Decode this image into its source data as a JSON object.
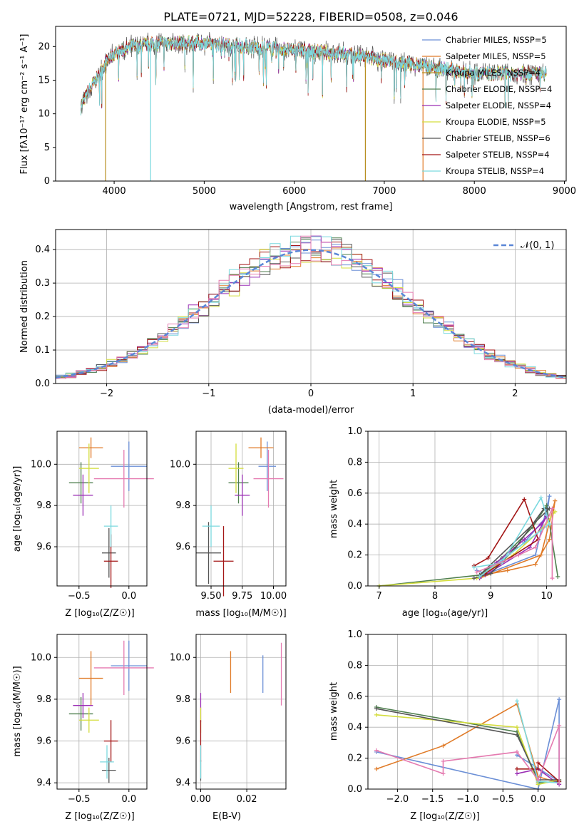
{
  "colors": [
    "#6b8fd6",
    "#e07b28",
    "#b88e1e",
    "#4f7f4f",
    "#9b2fb5",
    "#d4dd3c",
    "#555555",
    "#a31616",
    "#7bd9df"
  ],
  "spectrum": {
    "title": "PLATE=0721, MJD=52228, FIBERID=0508, z=0.046",
    "xlabel": "wavelength [Angstrom, rest frame]",
    "ylabel": "Flux [fλ10⁻¹⁷ erg cm⁻² s⁻¹ A⁻¹]",
    "xticks": [
      "4000",
      "5000",
      "6000",
      "7000",
      "8000",
      "9000"
    ],
    "yticks": [
      "0",
      "5",
      "10",
      "15",
      "20"
    ],
    "legend": [
      "Chabrier MILES, NSSP=5",
      "Salpeter MILES, NSSP=5",
      "Kroupa MILES, NSSP=4",
      "Chabrier ELODIE, NSSP=4",
      "Salpeter ELODIE, NSSP=4",
      "Kroupa ELODIE, NSSP=5",
      "Chabrier STELIB, NSSP=6",
      "Salpeter STELIB, NSSP=4",
      "Kroupa STELIB, NSSP=4"
    ]
  },
  "residuals": {
    "xlabel": "(data-model)/error",
    "ylabel": "Normed distribution",
    "xticks": [
      "−2",
      "−1",
      "0",
      "1",
      "2"
    ],
    "yticks": [
      "0.0",
      "0.1",
      "0.2",
      "0.3",
      "0.4"
    ],
    "legend": "𝒩(0, 1)"
  },
  "panels": {
    "age_z": {
      "xlabel": "Z [log₁₀(Z/Z☉)]",
      "ylabel": "age  [log₁₀(age/yr)]",
      "xticks": [
        "−0.5",
        "0.0"
      ],
      "yticks": [
        "9.6",
        "9.8",
        "10.0"
      ]
    },
    "age_mass": {
      "xlabel": "mass [log₁₀(M/M☉)]",
      "xticks": [
        "9.50",
        "9.75",
        "10.00"
      ],
      "yticks": [
        "9.6",
        "9.8",
        "10.0"
      ]
    },
    "mw_age": {
      "xlabel": "age  [log₁₀(age/yr)]",
      "ylabel": "mass weight",
      "xticks": [
        "7",
        "8",
        "9",
        "10"
      ],
      "yticks": [
        "0.0",
        "0.2",
        "0.4",
        "0.6",
        "0.8",
        "1.0"
      ]
    },
    "mass_z": {
      "xlabel": "Z [log₁₀(Z/Z☉)]",
      "ylabel": "mass [log₁₀(M/M☉)]",
      "xticks": [
        "−0.5",
        "0.0"
      ],
      "yticks": [
        "9.4",
        "9.6",
        "9.8",
        "10.0"
      ]
    },
    "mass_ebv": {
      "xlabel": "E(B-V)",
      "xticks": [
        "0.00",
        "0.02"
      ],
      "yticks": [
        "9.4",
        "9.6",
        "9.8",
        "10.0"
      ]
    },
    "mw_z": {
      "xlabel": "Z [log₁₀(Z/Z☉)]",
      "ylabel": "mass weight",
      "xticks": [
        "−2.0",
        "−1.5",
        "−1.0",
        "−0.5",
        "0.0"
      ],
      "yticks": [
        "0.0",
        "0.2",
        "0.4",
        "0.6",
        "0.8",
        "1.0"
      ]
    }
  },
  "chart_data": [
    {
      "type": "line",
      "title": "PLATE=0721, MJD=52228, FIBERID=0508, z=0.046",
      "xlim": [
        3350,
        9020
      ],
      "ylim": [
        0,
        23
      ],
      "continuum": [
        [
          3630,
          11
        ],
        [
          3700,
          13
        ],
        [
          3800,
          15
        ],
        [
          3900,
          17.5
        ],
        [
          4000,
          19
        ],
        [
          4200,
          20
        ],
        [
          4500,
          20.5
        ],
        [
          5000,
          20.5
        ],
        [
          5500,
          20
        ],
        [
          6000,
          19.5
        ],
        [
          6500,
          19
        ],
        [
          7000,
          18
        ],
        [
          7500,
          17
        ],
        [
          8000,
          16
        ],
        [
          8500,
          16
        ],
        [
          8800,
          16
        ]
      ],
      "drops": [
        {
          "x": 3905,
          "series": 2
        },
        {
          "x": 4405,
          "series": 8
        },
        {
          "x": 6790,
          "series": 2
        },
        {
          "x": 7430,
          "series": 1
        }
      ]
    },
    {
      "type": "bar",
      "xlim": [
        -2.5,
        2.5
      ],
      "ylim": [
        0,
        0.46
      ],
      "bin_width": 0.1,
      "gaussian": {
        "mu": 0,
        "sigma": 1
      }
    },
    {
      "type": "scatter",
      "name": "age_vs_Z",
      "xlim": [
        -0.72,
        0.18
      ],
      "ylim": [
        9.41,
        10.16
      ],
      "points": [
        {
          "x": 0.0,
          "xe": 0.18,
          "y": 9.99,
          "ye": 0.12,
          "s": 0
        },
        {
          "x": -0.38,
          "xe": 0.12,
          "y": 10.08,
          "ye": 0.05,
          "s": 1
        },
        {
          "x": -0.48,
          "xe": 0.12,
          "y": 9.91,
          "ye": 0.1,
          "s": 3
        },
        {
          "x": -0.46,
          "xe": 0.1,
          "y": 9.85,
          "ye": 0.1,
          "s": 4
        },
        {
          "x": -0.4,
          "xe": 0.1,
          "y": 9.98,
          "ye": 0.12,
          "s": 5
        },
        {
          "x": -0.2,
          "xe": 0.07,
          "y": 9.57,
          "ye": 0.12,
          "s": 6
        },
        {
          "x": -0.18,
          "xe": 0.07,
          "y": 9.53,
          "ye": 0.13,
          "s": 7
        },
        {
          "x": -0.18,
          "xe": 0.07,
          "y": 9.7,
          "ye": 0.1,
          "s": 8
        },
        {
          "x": -0.05,
          "xe": 0.3,
          "y": 9.93,
          "ye": 0.14,
          "s": 9
        }
      ]
    },
    {
      "type": "scatter",
      "name": "age_vs_mass",
      "xlim": [
        9.38,
        10.1
      ],
      "ylim": [
        9.41,
        10.16
      ],
      "points": [
        {
          "x": 9.95,
          "xe": 0.07,
          "y": 9.99,
          "ye": 0.12,
          "s": 0
        },
        {
          "x": 9.9,
          "xe": 0.1,
          "y": 10.08,
          "ye": 0.05,
          "s": 1
        },
        {
          "x": 9.72,
          "xe": 0.08,
          "y": 9.91,
          "ye": 0.1,
          "s": 3
        },
        {
          "x": 9.75,
          "xe": 0.06,
          "y": 9.85,
          "ye": 0.1,
          "s": 4
        },
        {
          "x": 9.7,
          "xe": 0.06,
          "y": 9.98,
          "ye": 0.12,
          "s": 5
        },
        {
          "x": 9.48,
          "xe": 0.1,
          "y": 9.57,
          "ye": 0.15,
          "s": 6
        },
        {
          "x": 9.6,
          "xe": 0.08,
          "y": 9.53,
          "ye": 0.17,
          "s": 7
        },
        {
          "x": 9.5,
          "xe": 0.07,
          "y": 9.7,
          "ye": 0.1,
          "s": 8
        },
        {
          "x": 9.96,
          "xe": 0.12,
          "y": 9.93,
          "ye": 0.14,
          "s": 9
        }
      ]
    },
    {
      "type": "line",
      "name": "mass_weight_vs_age",
      "xlim": [
        6.8,
        10.35
      ],
      "ylim": [
        0,
        1
      ],
      "series": [
        {
          "s": 0,
          "points": [
            [
              8.75,
              0.1
            ],
            [
              8.9,
              0.08
            ],
            [
              9.6,
              0.28
            ],
            [
              10.0,
              0.45
            ],
            [
              10.05,
              0.58
            ],
            [
              9.8,
              0.2
            ],
            [
              8.8,
              0.06
            ]
          ]
        },
        {
          "s": 1,
          "points": [
            [
              8.85,
              0.07
            ],
            [
              9.3,
              0.1
            ],
            [
              9.8,
              0.14
            ],
            [
              10.05,
              0.3
            ],
            [
              10.15,
              0.55
            ],
            [
              9.9,
              0.2
            ],
            [
              8.8,
              0.05
            ]
          ]
        },
        {
          "s": 3,
          "points": [
            [
              7.0,
              0.0
            ],
            [
              8.8,
              0.07
            ],
            [
              9.2,
              0.18
            ],
            [
              9.75,
              0.38
            ],
            [
              10.0,
              0.52
            ],
            [
              10.2,
              0.06
            ]
          ]
        },
        {
          "s": 4,
          "points": [
            [
              8.8,
              0.05
            ],
            [
              9.1,
              0.15
            ],
            [
              9.6,
              0.3
            ],
            [
              9.9,
              0.4
            ],
            [
              10.0,
              0.45
            ],
            [
              9.7,
              0.25
            ],
            [
              8.9,
              0.07
            ]
          ]
        },
        {
          "s": 5,
          "points": [
            [
              7.0,
              0.0
            ],
            [
              8.75,
              0.05
            ],
            [
              9.4,
              0.2
            ],
            [
              9.95,
              0.38
            ],
            [
              10.15,
              0.48
            ]
          ]
        },
        {
          "s": 6,
          "points": [
            [
              8.7,
              0.05
            ],
            [
              9.0,
              0.08
            ],
            [
              9.45,
              0.25
            ],
            [
              9.95,
              0.5
            ],
            [
              10.05,
              0.5
            ],
            [
              8.8,
              0.07
            ]
          ]
        },
        {
          "s": 7,
          "points": [
            [
              8.7,
              0.13
            ],
            [
              8.95,
              0.18
            ],
            [
              9.6,
              0.56
            ],
            [
              9.85,
              0.3
            ],
            [
              8.9,
              0.08
            ]
          ]
        },
        {
          "s": 8,
          "points": [
            [
              8.7,
              0.12
            ],
            [
              9.2,
              0.15
            ],
            [
              9.9,
              0.57
            ],
            [
              10.05,
              0.4
            ],
            [
              8.8,
              0.06
            ]
          ]
        },
        {
          "s": 9,
          "points": [
            [
              8.75,
              0.09
            ],
            [
              9.5,
              0.2
            ],
            [
              9.8,
              0.25
            ],
            [
              10.1,
              0.5
            ],
            [
              10.1,
              0.05
            ]
          ]
        }
      ]
    },
    {
      "type": "scatter",
      "name": "mass_vs_Z",
      "xlim": [
        -0.72,
        0.18
      ],
      "ylim": [
        9.37,
        10.11
      ],
      "points": [
        {
          "x": 0.0,
          "xe": 0.18,
          "y": 9.96,
          "ye": 0.12,
          "s": 0
        },
        {
          "x": -0.38,
          "xe": 0.12,
          "y": 9.9,
          "ye": 0.13,
          "s": 1
        },
        {
          "x": -0.48,
          "xe": 0.12,
          "y": 9.73,
          "ye": 0.08,
          "s": 3
        },
        {
          "x": -0.46,
          "xe": 0.1,
          "y": 9.77,
          "ye": 0.06,
          "s": 4
        },
        {
          "x": -0.4,
          "xe": 0.1,
          "y": 9.7,
          "ye": 0.06,
          "s": 5
        },
        {
          "x": -0.2,
          "xe": 0.07,
          "y": 9.46,
          "ye": 0.06,
          "s": 6
        },
        {
          "x": -0.18,
          "xe": 0.07,
          "y": 9.6,
          "ye": 0.1,
          "s": 7
        },
        {
          "x": -0.22,
          "xe": 0.07,
          "y": 9.5,
          "ye": 0.08,
          "s": 8
        },
        {
          "x": -0.05,
          "xe": 0.3,
          "y": 9.95,
          "ye": 0.13,
          "s": 9
        }
      ]
    },
    {
      "type": "scatter",
      "name": "mass_vs_EBV",
      "xlim": [
        -0.002,
        0.037
      ],
      "ylim": [
        9.37,
        10.11
      ],
      "points": [
        {
          "x": 0.027,
          "y": 9.92,
          "ye": 0.09,
          "s": 0
        },
        {
          "x": 0.013,
          "y": 9.93,
          "ye": 0.1,
          "s": 1
        },
        {
          "x": 0.0,
          "y": 9.76,
          "ye": 0.07,
          "s": 4
        },
        {
          "x": 0.0,
          "y": 9.7,
          "ye": 0.06,
          "s": 5
        },
        {
          "x": 0.0,
          "y": 9.46,
          "ye": 0.05,
          "s": 6
        },
        {
          "x": 0.0,
          "y": 9.6,
          "ye": 0.1,
          "s": 7
        },
        {
          "x": 0.0,
          "y": 9.5,
          "ye": 0.08,
          "s": 8
        },
        {
          "x": 0.035,
          "y": 9.92,
          "ye": 0.15,
          "s": 9
        }
      ]
    },
    {
      "type": "line",
      "name": "mass_weight_vs_Z",
      "xlim": [
        -2.42,
        0.4
      ],
      "ylim": [
        0,
        1
      ],
      "series": [
        {
          "s": 0,
          "points": [
            [
              -2.3,
              0.24
            ],
            [
              0.0,
              0.0
            ],
            [
              0.3,
              0.58
            ],
            [
              0.3,
              0.05
            ],
            [
              -0.3,
              0.22
            ]
          ]
        },
        {
          "s": 1,
          "points": [
            [
              -2.3,
              0.13
            ],
            [
              -1.35,
              0.28
            ],
            [
              -0.3,
              0.55
            ],
            [
              0.0,
              0.08
            ],
            [
              0.3,
              0.04
            ]
          ]
        },
        {
          "s": 3,
          "points": [
            [
              -2.3,
              0.53
            ],
            [
              -0.3,
              0.37
            ],
            [
              0.0,
              0.04
            ],
            [
              0.3,
              0.05
            ]
          ]
        },
        {
          "s": 4,
          "points": [
            [
              -0.3,
              0.1
            ],
            [
              0.0,
              0.13
            ],
            [
              0.3,
              0.03
            ]
          ]
        },
        {
          "s": 5,
          "points": [
            [
              -2.3,
              0.48
            ],
            [
              -0.3,
              0.4
            ],
            [
              0.0,
              0.03
            ],
            [
              0.3,
              0.06
            ]
          ]
        },
        {
          "s": 6,
          "points": [
            [
              -2.3,
              0.52
            ],
            [
              -0.3,
              0.35
            ],
            [
              0.0,
              0.06
            ],
            [
              0.3,
              0.06
            ]
          ]
        },
        {
          "s": 7,
          "points": [
            [
              -0.3,
              0.13
            ],
            [
              0.0,
              0.13
            ],
            [
              0.0,
              0.17
            ],
            [
              0.3,
              0.05
            ]
          ]
        },
        {
          "s": 8,
          "points": [
            [
              -0.3,
              0.57
            ],
            [
              0.0,
              0.05
            ],
            [
              0.3,
              0.04
            ]
          ]
        },
        {
          "s": 9,
          "points": [
            [
              -2.3,
              0.25
            ],
            [
              -1.35,
              0.1
            ],
            [
              -1.35,
              0.18
            ],
            [
              -0.3,
              0.24
            ],
            [
              0.0,
              0.06
            ],
            [
              0.3,
              0.41
            ],
            [
              0.3,
              0.04
            ]
          ]
        }
      ]
    }
  ]
}
